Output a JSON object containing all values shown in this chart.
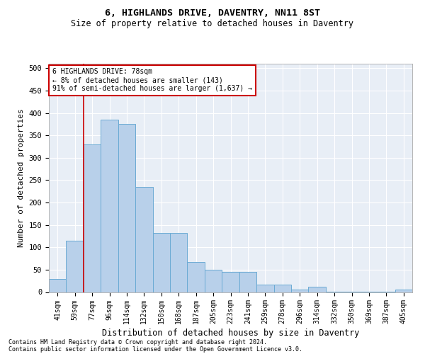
{
  "title": "6, HIGHLANDS DRIVE, DAVENTRY, NN11 8ST",
  "subtitle": "Size of property relative to detached houses in Daventry",
  "xlabel": "Distribution of detached houses by size in Daventry",
  "ylabel": "Number of detached properties",
  "categories": [
    "41sqm",
    "59sqm",
    "77sqm",
    "96sqm",
    "114sqm",
    "132sqm",
    "150sqm",
    "168sqm",
    "187sqm",
    "205sqm",
    "223sqm",
    "241sqm",
    "259sqm",
    "278sqm",
    "296sqm",
    "314sqm",
    "332sqm",
    "350sqm",
    "369sqm",
    "387sqm",
    "405sqm"
  ],
  "values": [
    29,
    115,
    330,
    385,
    375,
    235,
    132,
    132,
    68,
    50,
    45,
    45,
    17,
    17,
    5,
    12,
    1,
    1,
    1,
    1,
    6
  ],
  "bar_color": "#b8d0ea",
  "bar_edge_color": "#6aaad4",
  "vline_index": 2,
  "annotation_text": "6 HIGHLANDS DRIVE: 78sqm\n← 8% of detached houses are smaller (143)\n91% of semi-detached houses are larger (1,637) →",
  "annotation_box_color": "white",
  "annotation_box_edge_color": "#cc0000",
  "ylim": [
    0,
    510
  ],
  "yticks": [
    0,
    50,
    100,
    150,
    200,
    250,
    300,
    350,
    400,
    450,
    500
  ],
  "plot_bg_color": "#e8eef6",
  "grid_color": "#ffffff",
  "footnote1": "Contains HM Land Registry data © Crown copyright and database right 2024.",
  "footnote2": "Contains public sector information licensed under the Open Government Licence v3.0."
}
